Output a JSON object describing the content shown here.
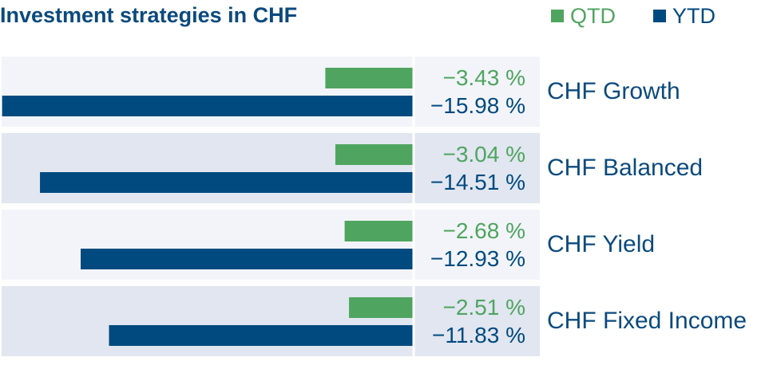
{
  "colors": {
    "qtd": "#4fa55f",
    "ytd": "#004a7f",
    "title": "#0b4a7d",
    "category_text": "#0b4a7d",
    "row_light": "#f2f4f9",
    "row_dark": "#e1e6f0",
    "divider": "#ffffff"
  },
  "chart_data": {
    "type": "bar",
    "orientation": "horizontal",
    "title": "Investment strategies in CHF",
    "categories": [
      "CHF Growth",
      "CHF Balanced",
      "CHF Yield",
      "CHF Fixed Income"
    ],
    "series": [
      {
        "name": "QTD",
        "values": [
          -3.43,
          -3.04,
          -2.68,
          -2.51
        ],
        "labels": [
          "−3.43 %",
          "−3.04 %",
          "−2.68 %",
          "−2.51 %"
        ]
      },
      {
        "name": "YTD",
        "values": [
          -15.98,
          -14.51,
          -12.93,
          -11.83
        ],
        "labels": [
          "−15.98 %",
          "−14.51 %",
          "−12.93 %",
          "−11.83 %"
        ]
      }
    ],
    "xlim": [
      -16.0,
      0
    ],
    "legend_position": "top-right",
    "grid": false
  }
}
